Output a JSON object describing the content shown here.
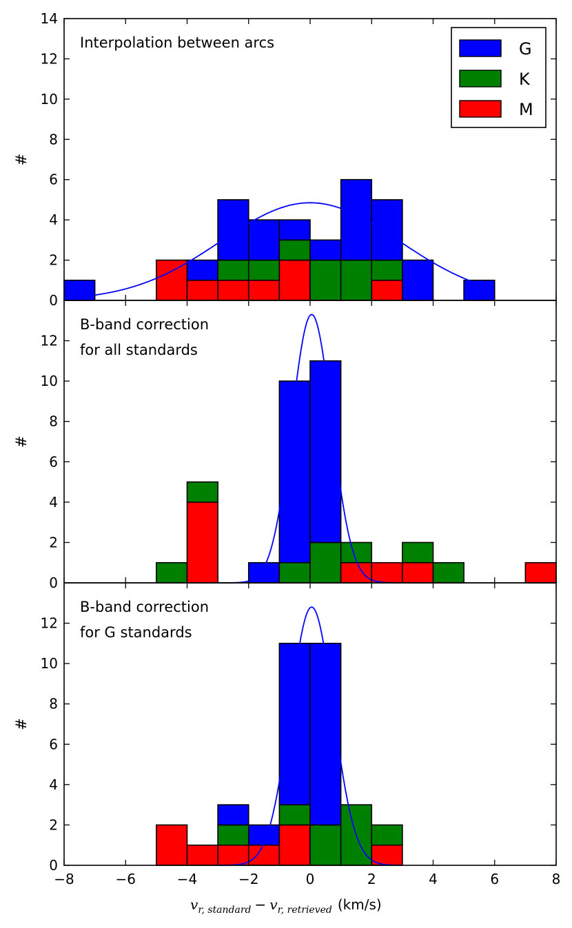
{
  "chart_data": {
    "type": "bar",
    "stacked": true,
    "shared_x": true,
    "bin_width": 1,
    "xlim": [
      -8,
      8
    ],
    "xticks": [
      -8,
      -6,
      -4,
      -2,
      0,
      2,
      4,
      6,
      8
    ],
    "xtick_labels": [
      "−8",
      "−6",
      "−4",
      "−2",
      "0",
      "2",
      "4",
      "6",
      "8"
    ],
    "xlabel": {
      "v1": "v",
      "sub1": "r, standard",
      "minus": "−",
      "v2": "v",
      "sub2": "r, retrieved",
      "units": "(km/s)"
    },
    "series_styles": [
      {
        "name": "G",
        "color": "#0000ff"
      },
      {
        "name": "K",
        "color": "#008000"
      },
      {
        "name": "M",
        "color": "#ff0000"
      }
    ],
    "fit_color": "#0000ff",
    "legend": {
      "entries": [
        "G",
        "K",
        "M"
      ],
      "placement": "top-right",
      "panel": 0
    },
    "panels": [
      {
        "annotation": [
          "Interpolation between arcs"
        ],
        "ylabel": "#",
        "ylim": [
          0,
          14
        ],
        "yticks": [
          0,
          2,
          4,
          6,
          8,
          10,
          12,
          14
        ],
        "bins": [
          {
            "x0": -8,
            "M": 0,
            "K": 0,
            "G": 1
          },
          {
            "x0": -5,
            "M": 2,
            "K": 0,
            "G": 0
          },
          {
            "x0": -4,
            "M": 1,
            "K": 0,
            "G": 1
          },
          {
            "x0": -3,
            "M": 1,
            "K": 1,
            "G": 3
          },
          {
            "x0": -2,
            "M": 1,
            "K": 1,
            "G": 2
          },
          {
            "x0": -1,
            "M": 2,
            "K": 1,
            "G": 1
          },
          {
            "x0": 0,
            "M": 0,
            "K": 2,
            "G": 1
          },
          {
            "x0": 1,
            "M": 0,
            "K": 2,
            "G": 4
          },
          {
            "x0": 2,
            "M": 1,
            "K": 1,
            "G": 3
          },
          {
            "x0": 3,
            "M": 0,
            "K": 0,
            "G": 2
          },
          {
            "x0": 5,
            "M": 0,
            "K": 0,
            "G": 1
          }
        ],
        "gaussian_fit": {
          "amplitude": 4.85,
          "mean": 0.0,
          "sigma": 2.9,
          "x_range": [
            -7.0,
            5.5
          ]
        }
      },
      {
        "annotation": [
          "B-band correction",
          "for all standards"
        ],
        "ylabel": "#",
        "ylim": [
          0,
          14
        ],
        "yticks": [
          0,
          2,
          4,
          6,
          8,
          10,
          12
        ],
        "bins": [
          {
            "x0": -5,
            "M": 0,
            "K": 1,
            "G": 0
          },
          {
            "x0": -4,
            "M": 4,
            "K": 1,
            "G": 0
          },
          {
            "x0": -2,
            "M": 0,
            "K": 0,
            "G": 1
          },
          {
            "x0": -1,
            "M": 0,
            "K": 1,
            "G": 9
          },
          {
            "x0": 0,
            "M": 0,
            "K": 2,
            "G": 9
          },
          {
            "x0": 1,
            "M": 1,
            "K": 1,
            "G": 0
          },
          {
            "x0": 2,
            "M": 1,
            "K": 0,
            "G": 0
          },
          {
            "x0": 3,
            "M": 1,
            "K": 1,
            "G": 0
          },
          {
            "x0": 4,
            "M": 0,
            "K": 1,
            "G": 0
          },
          {
            "x0": 7,
            "M": 1,
            "K": 0,
            "G": 0
          }
        ],
        "gaussian_fit": {
          "amplitude": 13.3,
          "mean": 0.05,
          "sigma": 0.65,
          "x_range": [
            -3.0,
            3.0
          ]
        }
      },
      {
        "annotation": [
          "B-band correction",
          "for G standards"
        ],
        "ylabel": "#",
        "ylim": [
          0,
          14
        ],
        "yticks": [
          0,
          2,
          4,
          6,
          8,
          10,
          12
        ],
        "bins": [
          {
            "x0": -5,
            "M": 2,
            "K": 0,
            "G": 0
          },
          {
            "x0": -4,
            "M": 1,
            "K": 0,
            "G": 0
          },
          {
            "x0": -3,
            "M": 1,
            "K": 1,
            "G": 1
          },
          {
            "x0": -2,
            "M": 1,
            "K": 0,
            "G": 1
          },
          {
            "x0": -1,
            "M": 2,
            "K": 1,
            "G": 8
          },
          {
            "x0": 0,
            "M": 0,
            "K": 2,
            "G": 9
          },
          {
            "x0": 1,
            "M": 0,
            "K": 3,
            "G": 0
          },
          {
            "x0": 2,
            "M": 1,
            "K": 1,
            "G": 0
          }
        ],
        "gaussian_fit": {
          "amplitude": 12.8,
          "mean": 0.05,
          "sigma": 0.7,
          "x_range": [
            -3.0,
            3.0
          ]
        }
      }
    ]
  }
}
